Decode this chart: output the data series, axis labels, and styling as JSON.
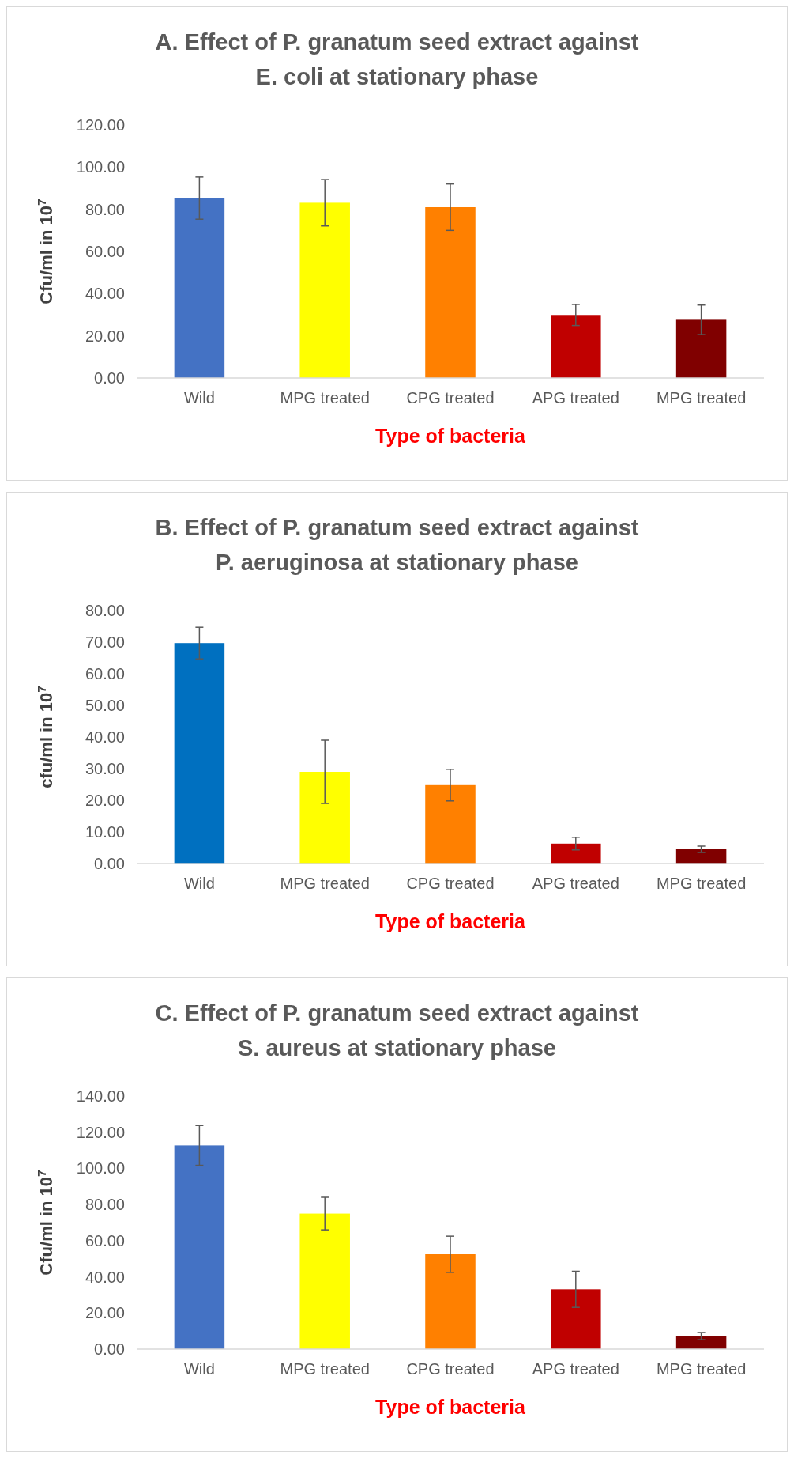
{
  "chart_data": [
    {
      "type": "bar",
      "title": "A. Effect of P. granatum seed extract against E. coli at stationary phase",
      "xlabel": "Type of bacteria",
      "ylabel": "Cfu/ml in 10$^{7}$",
      "categories": [
        "Wild",
        "MPG treated",
        "CPG treated",
        "APG treated",
        "MPG treated"
      ],
      "values": [
        85.3,
        83.1,
        81,
        29.9,
        27.6
      ],
      "errors": [
        10,
        11,
        11,
        5,
        7
      ],
      "colors": [
        "#4472c4",
        "#ffff00",
        "#ff8000",
        "#c00000",
        "#800000"
      ],
      "ylim": [
        0,
        120
      ],
      "yticks": [
        {
          "value": 0,
          "label": "0.00"
        },
        {
          "value": 20,
          "label": "20.00"
        },
        {
          "value": 40,
          "label": "40.00"
        },
        {
          "value": 60,
          "label": "60.00"
        },
        {
          "value": 80,
          "label": "80.00"
        },
        {
          "value": 100,
          "label": "100.00"
        },
        {
          "value": 120,
          "label": "120.00"
        }
      ]
    },
    {
      "type": "bar",
      "title": "B. Effect of P. granatum seed extract against P. aeruginosa at stationary phase",
      "xlabel": "Type of bacteria",
      "ylabel": "cfu/ml in 10$^{7}$",
      "categories": [
        "Wild",
        "MPG treated",
        "CPG treated",
        "APG treated",
        "MPG treated"
      ],
      "values": [
        69.7,
        29,
        24.8,
        6.3,
        4.5
      ],
      "errors": [
        5,
        10,
        5,
        2,
        1
      ],
      "colors": [
        "#0070c0",
        "#ffff00",
        "#ff8000",
        "#c00000",
        "#800000"
      ],
      "ylim": [
        0,
        80
      ],
      "yticks": [
        {
          "value": 0,
          "label": "0.00"
        },
        {
          "value": 10,
          "label": "10.00"
        },
        {
          "value": 20,
          "label": "20.00"
        },
        {
          "value": 30,
          "label": "30.00"
        },
        {
          "value": 40,
          "label": "40.00"
        },
        {
          "value": 50,
          "label": "50.00"
        },
        {
          "value": 60,
          "label": "60.00"
        },
        {
          "value": 70,
          "label": "70.00"
        },
        {
          "value": 80,
          "label": "80.00"
        }
      ]
    },
    {
      "type": "bar",
      "title": "C. Effect of P. granatum seed extract against S. aureus at stationary phase",
      "xlabel": "Type of bacteria",
      "ylabel": "Cfu/ml in 10$^{7}$",
      "categories": [
        "Wild",
        "MPG treated",
        "CPG treated",
        "APG treated",
        "MPG treated"
      ],
      "values": [
        112.7,
        75,
        52.5,
        33.1,
        7.2
      ],
      "errors": [
        11,
        9,
        10,
        10,
        2
      ],
      "colors": [
        "#4472c4",
        "#ffff00",
        "#ff8000",
        "#c00000",
        "#800000"
      ],
      "ylim": [
        0,
        140
      ],
      "yticks": [
        {
          "value": 0,
          "label": "0.00"
        },
        {
          "value": 20,
          "label": "20.00"
        },
        {
          "value": 40,
          "label": "40.00"
        },
        {
          "value": 60,
          "label": "60.00"
        },
        {
          "value": 80,
          "label": "80.00"
        },
        {
          "value": 100,
          "label": "100.00"
        },
        {
          "value": 120,
          "label": "120.00"
        },
        {
          "value": 140,
          "label": "140.00"
        }
      ]
    }
  ]
}
